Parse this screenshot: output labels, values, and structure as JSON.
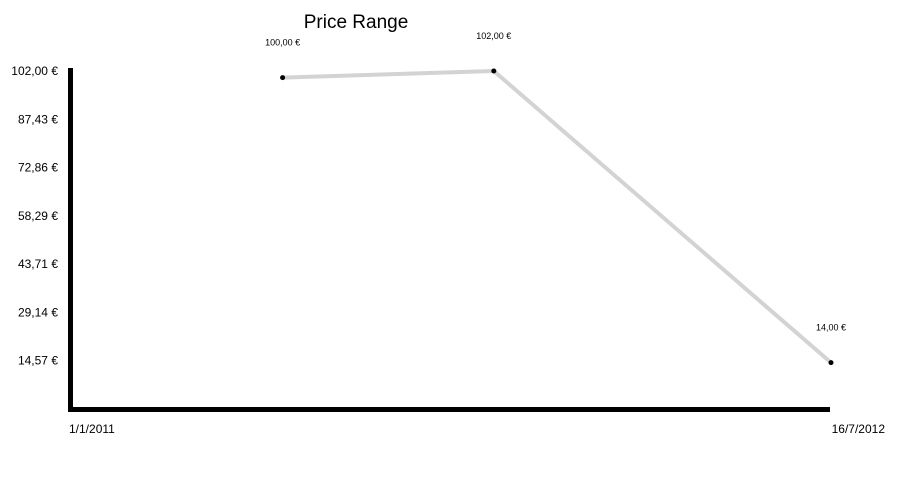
{
  "chart_data": {
    "type": "line",
    "title": "Price Range",
    "x_tick_labels": [
      "1/1/2011",
      "16/7/2012"
    ],
    "y_tick_labels": [
      "102,00 €",
      "87,43 €",
      "72,86 €",
      "58,29 €",
      "43,71 €",
      "29,14 €",
      "14,57 €"
    ],
    "y_ticks": [
      102.0,
      87.43,
      72.86,
      58.29,
      43.71,
      29.14,
      14.57
    ],
    "ylim": [
      0,
      102
    ],
    "xlim": [
      "2011-01-01",
      "2012-07-16"
    ],
    "x": [
      "2011-06-07",
      "2011-11-10",
      "2012-07-16"
    ],
    "values": [
      100.0,
      102.0,
      14.0
    ],
    "data_labels": [
      "100,00 €",
      "102,00 €",
      "14,00 €"
    ],
    "grid": false,
    "legend": "none",
    "colors": {
      "line": "#d3d3d3",
      "marker": "#000000",
      "axis": "#000000"
    }
  }
}
